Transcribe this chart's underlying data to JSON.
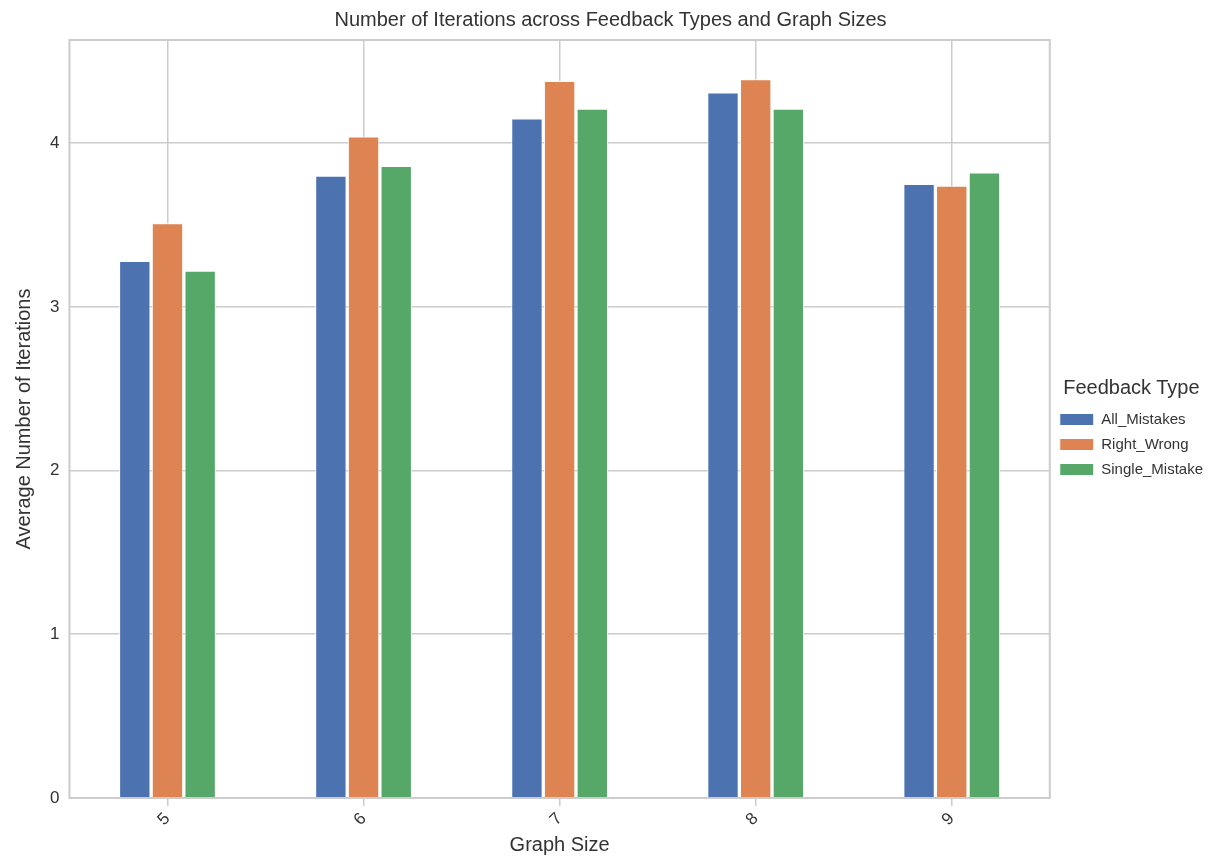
{
  "chart_data": {
    "type": "bar",
    "title": "Number of Iterations across Feedback Types and Graph Sizes",
    "xlabel": "Graph Size",
    "ylabel": "Average Number of Iterations",
    "legend_title": "Feedback Type",
    "categories": [
      "5",
      "6",
      "7",
      "8",
      "9"
    ],
    "series": [
      {
        "name": "All_Mistakes",
        "color": "#4c72b0",
        "values": [
          3.28,
          3.8,
          4.15,
          4.31,
          3.75
        ]
      },
      {
        "name": "Right_Wrong",
        "color": "#dd8452",
        "values": [
          3.51,
          4.04,
          4.38,
          4.39,
          3.74
        ]
      },
      {
        "name": "Single_Mistake",
        "color": "#55a868",
        "values": [
          3.22,
          3.86,
          4.21,
          4.21,
          3.82
        ]
      }
    ],
    "ylim": [
      0,
      4.63
    ],
    "yticks": [
      0,
      1,
      2,
      3,
      4
    ],
    "grid": true,
    "legend": "right"
  }
}
